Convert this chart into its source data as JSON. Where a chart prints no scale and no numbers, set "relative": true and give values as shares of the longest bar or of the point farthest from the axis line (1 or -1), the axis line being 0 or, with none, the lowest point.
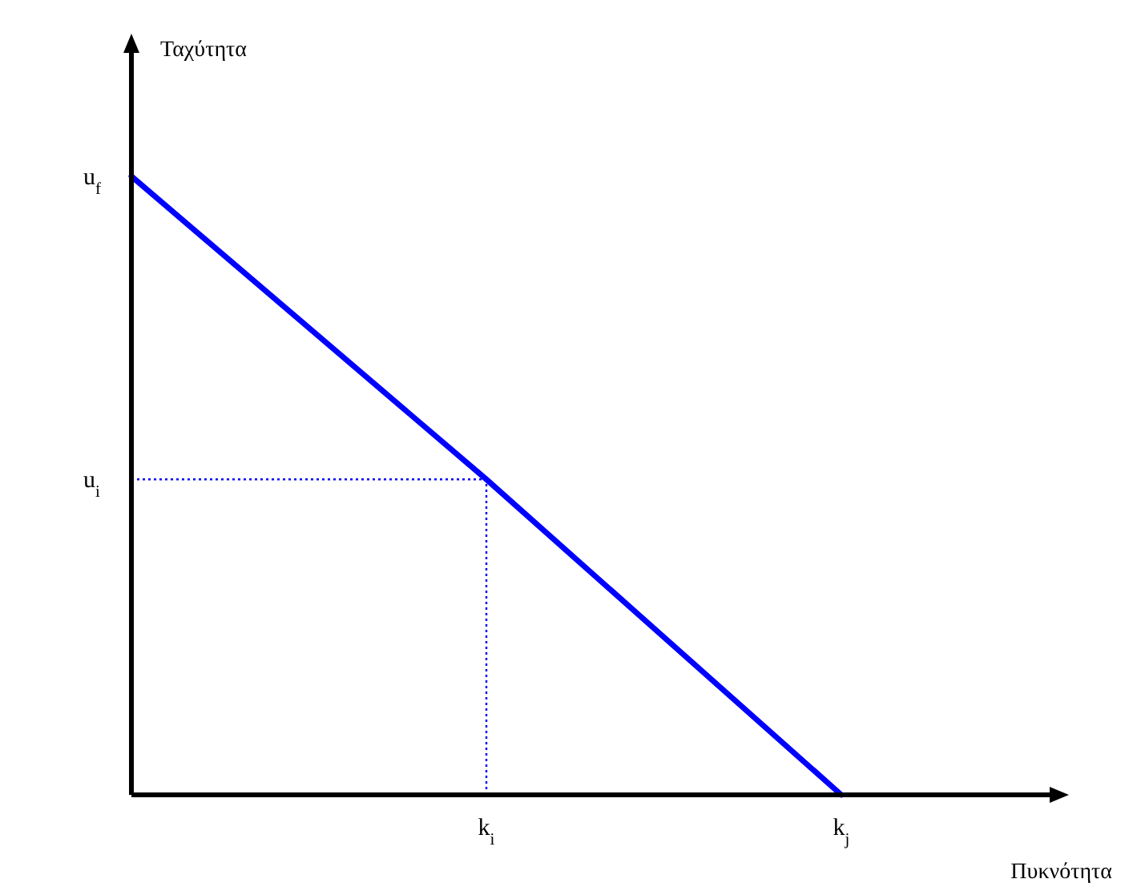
{
  "chart_data": {
    "type": "line",
    "xlabel": "Πυκνότητα",
    "relative": true,
    "categories": [
      null,
      "k$_{i}$",
      "k$_{j}$"
    ],
    "series": [
      {
        "color": "#0000ff",
        "values": [
          1,
          0.51,
          0
        ]
      }
    ],
    "ref_lines": [
      {
        "axis": "y",
        "value": 0.51,
        "label": "u$_{i}$",
        "color": "#0000ff",
        "line_style": "dotted"
      },
      {
        "axis": "x",
        "value": "k$_{i}$",
        "color": "#0000ff",
        "line_style": "dotted"
      }
    ],
    "annotations": [
      "Ταχύτητα",
      "u$_{f}$"
    ]
  }
}
